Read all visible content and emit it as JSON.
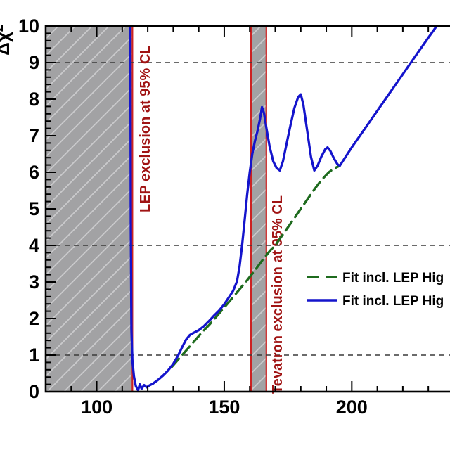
{
  "chart_data": {
    "type": "line",
    "title": "",
    "xlabel": "",
    "ylabel": "Δχ²",
    "ylabel_base": "Δχ",
    "ylabel_sup": "2",
    "xlim": [
      80,
      238.5
    ],
    "ylim": [
      0,
      10
    ],
    "x_major_ticks": [
      100,
      150,
      200
    ],
    "x_minor_step": 10,
    "y_major_step": 1,
    "y_minor_step": 0.2,
    "y_tick_labels": [
      "0",
      "1",
      "2",
      "3",
      "4",
      "5",
      "6",
      "7",
      "8",
      "9",
      "10"
    ],
    "grid_lines_y": [
      1,
      4,
      9
    ],
    "grid_style": "dashed",
    "legend_position": "right-middle",
    "series": [
      {
        "name": "Fit incl. LEP Hig",
        "style": "dashed",
        "color": "#1e6b1e",
        "points": [
          [
            129.5,
            0.68
          ],
          [
            132,
            0.88
          ],
          [
            135,
            1.12
          ],
          [
            138,
            1.36
          ],
          [
            141,
            1.6
          ],
          [
            144,
            1.82
          ],
          [
            147,
            2.06
          ],
          [
            150,
            2.3
          ],
          [
            153,
            2.55
          ],
          [
            156,
            2.8
          ],
          [
            159,
            3.05
          ],
          [
            162,
            3.32
          ],
          [
            165,
            3.6
          ],
          [
            168,
            3.86
          ],
          [
            170,
            4.0
          ],
          [
            173,
            4.3
          ],
          [
            176,
            4.6
          ],
          [
            179,
            4.9
          ],
          [
            182,
            5.2
          ],
          [
            185,
            5.5
          ],
          [
            188,
            5.78
          ],
          [
            191,
            6.0
          ],
          [
            193,
            6.1
          ],
          [
            195.3,
            6.18
          ]
        ]
      },
      {
        "name": "Fit incl. LEP Hig",
        "style": "solid",
        "color": "#1414cc",
        "points": [
          [
            113.2,
            10
          ],
          [
            113.35,
            4.6
          ],
          [
            113.6,
            1.7
          ],
          [
            114,
            0.85
          ],
          [
            114.6,
            0.42
          ],
          [
            115.3,
            0.16
          ],
          [
            116.2,
            0.04
          ],
          [
            116.9,
            0.2
          ],
          [
            117.6,
            0.08
          ],
          [
            118.6,
            0.18
          ],
          [
            119.6,
            0.12
          ],
          [
            120.6,
            0.17
          ],
          [
            122,
            0.22
          ],
          [
            124,
            0.32
          ],
          [
            126,
            0.44
          ],
          [
            128,
            0.58
          ],
          [
            130,
            0.76
          ],
          [
            132,
            1.0
          ],
          [
            133.5,
            1.22
          ],
          [
            135,
            1.42
          ],
          [
            136.5,
            1.55
          ],
          [
            138,
            1.61
          ],
          [
            140,
            1.68
          ],
          [
            142,
            1.79
          ],
          [
            144,
            1.93
          ],
          [
            146,
            2.08
          ],
          [
            148,
            2.22
          ],
          [
            150,
            2.39
          ],
          [
            152,
            2.6
          ],
          [
            153.5,
            2.76
          ],
          [
            155,
            3.02
          ],
          [
            156,
            3.42
          ],
          [
            157,
            4.0
          ],
          [
            158,
            4.7
          ],
          [
            159,
            5.4
          ],
          [
            160,
            6.0
          ],
          [
            161,
            6.5
          ],
          [
            162,
            6.85
          ],
          [
            163,
            7.12
          ],
          [
            164,
            7.45
          ],
          [
            164.8,
            7.78
          ],
          [
            165.6,
            7.62
          ],
          [
            166.5,
            7.22
          ],
          [
            167.8,
            6.7
          ],
          [
            169.2,
            6.3
          ],
          [
            170.5,
            6.12
          ],
          [
            171.8,
            6.05
          ],
          [
            173,
            6.3
          ],
          [
            174.5,
            6.8
          ],
          [
            176,
            7.3
          ],
          [
            177.5,
            7.76
          ],
          [
            179,
            8.06
          ],
          [
            180,
            8.13
          ],
          [
            181,
            7.86
          ],
          [
            182.5,
            7.15
          ],
          [
            184,
            6.42
          ],
          [
            185.3,
            6.05
          ],
          [
            186.6,
            6.18
          ],
          [
            188,
            6.42
          ],
          [
            189.6,
            6.63
          ],
          [
            190.5,
            6.68
          ],
          [
            191.6,
            6.58
          ],
          [
            193,
            6.38
          ],
          [
            194.4,
            6.22
          ],
          [
            195.3,
            6.18
          ],
          [
            200,
            6.68
          ],
          [
            205,
            7.18
          ],
          [
            210,
            7.68
          ],
          [
            215,
            8.18
          ],
          [
            220,
            8.68
          ],
          [
            225,
            9.18
          ],
          [
            230,
            9.68
          ],
          [
            233.3,
            10
          ]
        ]
      }
    ],
    "exclusions": [
      {
        "label": "LEP exclusion at 95% CL",
        "x_range": [
          80,
          114
        ],
        "edges": [
          "right"
        ]
      },
      {
        "label": "Tevatron exclusion at 95% CL",
        "x_range": [
          160.5,
          166.5
        ],
        "edges": [
          "left",
          "right"
        ]
      }
    ],
    "colors": {
      "blue_curve": "#1414cc",
      "green_curve": "#1e6b1e",
      "exclusion_fill": "#a2a2a4",
      "exclusion_hatch": "#cbcbcd",
      "exclusion_line": "#cc2222",
      "exclusion_text": "#a01414",
      "grid_dash": "#3a3a3a",
      "axis": "#000000"
    }
  },
  "legend": {
    "items": [
      {
        "label": "Fit incl. LEP Hig",
        "style": "dashed",
        "color": "#1e6b1e"
      },
      {
        "label": "Fit incl. LEP Hig",
        "style": "solid",
        "color": "#1414cc"
      }
    ]
  }
}
